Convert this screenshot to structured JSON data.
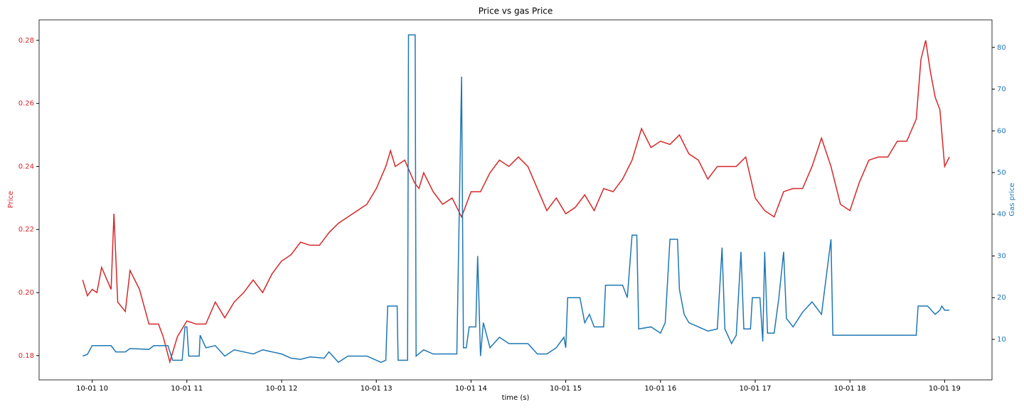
{
  "chart_data": {
    "type": "line",
    "title": "Price vs gas Price",
    "x_label": "time (s)",
    "y_label": "Price",
    "y2_label": "Gas price",
    "xlim": [
      9.44,
      19.5
    ],
    "xticks": [
      {
        "value": 10,
        "label": "10-01 10"
      },
      {
        "value": 11,
        "label": "10-01 11"
      },
      {
        "value": 12,
        "label": "10-01 12"
      },
      {
        "value": 13,
        "label": "10-01 13"
      },
      {
        "value": 14,
        "label": "10-01 14"
      },
      {
        "value": 15,
        "label": "10-01 15"
      },
      {
        "value": 16,
        "label": "10-01 16"
      },
      {
        "value": 17,
        "label": "10-01 17"
      },
      {
        "value": 18,
        "label": "10-01 18"
      },
      {
        "value": 19,
        "label": "10-01 19"
      }
    ],
    "ylim": [
      0.1723,
      0.2865
    ],
    "yticks": [
      {
        "value": 0.18,
        "label": "0.18"
      },
      {
        "value": 0.2,
        "label": "0.20"
      },
      {
        "value": 0.22,
        "label": "0.22"
      },
      {
        "value": 0.24,
        "label": "0.24"
      },
      {
        "value": 0.26,
        "label": "0.26"
      },
      {
        "value": 0.28,
        "label": "0.28"
      }
    ],
    "y2lim": [
      0.29,
      86.6
    ],
    "y2ticks": [
      10,
      20,
      30,
      40,
      50,
      60,
      70,
      80
    ],
    "series": [
      {
        "name": "Price",
        "color": "#d62728",
        "x": [
          9.9,
          9.95,
          10.0,
          10.05,
          10.1,
          10.2,
          10.23,
          10.27,
          10.35,
          10.4,
          10.5,
          10.6,
          10.7,
          10.75,
          10.82,
          10.9,
          11.0,
          11.1,
          11.2,
          11.3,
          11.4,
          11.5,
          11.6,
          11.7,
          11.8,
          11.9,
          12.0,
          12.1,
          12.2,
          12.3,
          12.4,
          12.5,
          12.6,
          12.7,
          12.8,
          12.9,
          13.0,
          13.1,
          13.15,
          13.2,
          13.3,
          13.4,
          13.45,
          13.5,
          13.6,
          13.7,
          13.8,
          13.9,
          14.0,
          14.1,
          14.2,
          14.3,
          14.4,
          14.5,
          14.6,
          14.7,
          14.8,
          14.9,
          15.0,
          15.1,
          15.2,
          15.3,
          15.4,
          15.5,
          15.6,
          15.7,
          15.8,
          15.9,
          16.0,
          16.1,
          16.2,
          16.3,
          16.4,
          16.5,
          16.6,
          16.7,
          16.8,
          16.9,
          17.0,
          17.1,
          17.2,
          17.3,
          17.4,
          17.5,
          17.6,
          17.7,
          17.8,
          17.9,
          18.0,
          18.1,
          18.2,
          18.3,
          18.4,
          18.5,
          18.6,
          18.7,
          18.75,
          18.8,
          18.85,
          18.9,
          18.95,
          19.0,
          19.05
        ],
        "values": [
          0.204,
          0.199,
          0.201,
          0.2,
          0.208,
          0.201,
          0.225,
          0.197,
          0.194,
          0.207,
          0.201,
          0.19,
          0.19,
          0.186,
          0.178,
          0.186,
          0.191,
          0.19,
          0.19,
          0.197,
          0.192,
          0.197,
          0.2,
          0.204,
          0.2,
          0.206,
          0.21,
          0.212,
          0.216,
          0.215,
          0.215,
          0.219,
          0.222,
          0.224,
          0.226,
          0.228,
          0.233,
          0.24,
          0.245,
          0.24,
          0.242,
          0.235,
          0.233,
          0.238,
          0.232,
          0.228,
          0.23,
          0.224,
          0.232,
          0.232,
          0.238,
          0.242,
          0.24,
          0.243,
          0.24,
          0.233,
          0.226,
          0.23,
          0.225,
          0.227,
          0.231,
          0.226,
          0.233,
          0.232,
          0.236,
          0.242,
          0.252,
          0.246,
          0.248,
          0.247,
          0.25,
          0.244,
          0.242,
          0.236,
          0.24,
          0.24,
          0.24,
          0.243,
          0.23,
          0.226,
          0.224,
          0.232,
          0.233,
          0.233,
          0.24,
          0.249,
          0.24,
          0.228,
          0.226,
          0.235,
          0.242,
          0.243,
          0.243,
          0.248,
          0.248,
          0.255,
          0.274,
          0.28,
          0.27,
          0.262,
          0.258,
          0.24,
          0.243
        ]
      },
      {
        "name": "Gas price",
        "color": "#1f77b4",
        "axis": "y2",
        "x": [
          9.9,
          9.95,
          10.0,
          10.2,
          10.25,
          10.35,
          10.4,
          10.6,
          10.65,
          10.8,
          10.85,
          10.95,
          10.98,
          11.0,
          11.02,
          11.13,
          11.14,
          11.2,
          11.3,
          11.4,
          11.5,
          11.6,
          11.7,
          11.8,
          11.9,
          12.0,
          12.1,
          12.2,
          12.3,
          12.45,
          12.5,
          12.6,
          12.7,
          12.9,
          13.0,
          13.05,
          13.1,
          13.12,
          13.22,
          13.23,
          13.33,
          13.34,
          13.41,
          13.42,
          13.5,
          13.6,
          13.8,
          13.85,
          13.9,
          13.92,
          13.95,
          13.98,
          14.05,
          14.07,
          14.1,
          14.13,
          14.2,
          14.3,
          14.4,
          14.6,
          14.7,
          14.8,
          14.9,
          14.98,
          15.0,
          15.02,
          15.15,
          15.2,
          15.25,
          15.3,
          15.4,
          15.42,
          15.6,
          15.65,
          15.7,
          15.75,
          15.77,
          15.9,
          16.0,
          16.05,
          16.1,
          16.18,
          16.2,
          16.25,
          16.3,
          16.4,
          16.5,
          16.6,
          16.65,
          16.68,
          16.75,
          16.8,
          16.85,
          16.88,
          16.95,
          16.97,
          17.05,
          17.08,
          17.1,
          17.13,
          17.2,
          17.25,
          17.3,
          17.33,
          17.4,
          17.5,
          17.6,
          17.7,
          17.8,
          17.82,
          18.0,
          18.5,
          18.7,
          18.72,
          18.82,
          18.9,
          18.95,
          18.97,
          19.0,
          19.05
        ],
        "values": [
          6,
          6.4,
          8.5,
          8.5,
          7,
          7,
          7.8,
          7.6,
          8.5,
          8.5,
          5,
          5,
          13,
          13,
          6,
          6,
          11,
          8,
          8.5,
          6,
          7.5,
          7,
          6.5,
          7.5,
          7,
          6.5,
          5.5,
          5.2,
          5.8,
          5.5,
          7,
          4.5,
          6,
          6,
          5,
          4.5,
          5,
          18,
          18,
          5,
          5,
          83,
          83,
          6,
          7.5,
          6.5,
          6.5,
          6.5,
          73,
          8,
          8,
          13,
          13,
          30,
          6,
          14,
          8,
          10.5,
          9,
          9,
          6.5,
          6.5,
          8,
          10.5,
          8,
          20,
          20,
          14,
          16,
          13,
          13,
          23,
          23,
          20,
          35,
          35,
          12.5,
          13,
          11.5,
          14,
          34,
          34,
          22,
          16,
          14,
          13,
          12,
          12.5,
          32,
          12.5,
          9,
          11,
          31,
          12.5,
          12.5,
          20,
          20,
          9.5,
          31,
          11.5,
          11.5,
          20,
          31,
          15,
          13,
          16.5,
          19,
          16,
          34,
          11,
          11,
          11,
          11,
          18,
          18,
          16,
          17,
          18,
          17,
          17
        ]
      }
    ]
  }
}
